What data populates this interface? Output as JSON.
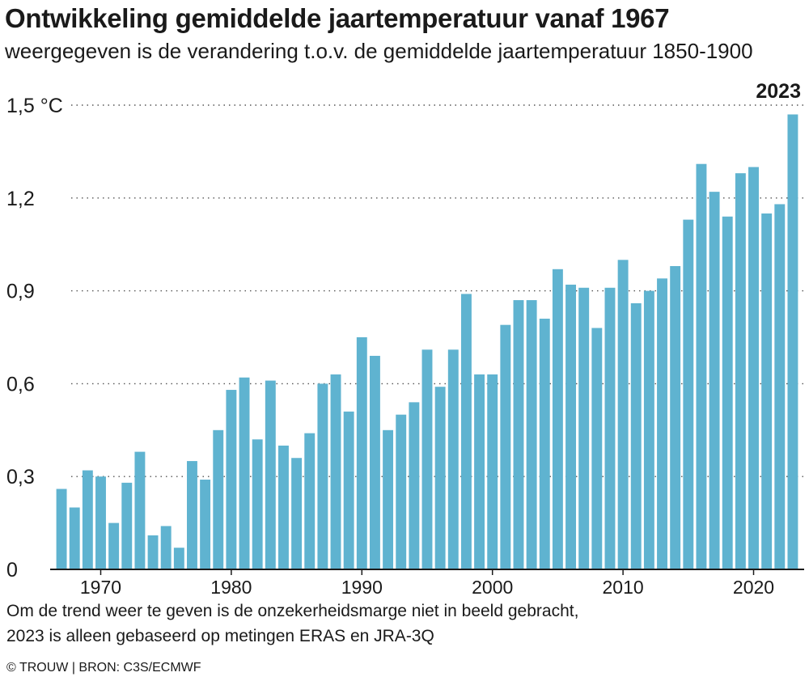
{
  "header": {
    "title": "Ontwikkeling gemiddelde jaartemperatuur vanaf 1967",
    "subtitle": "weergegeven is de verandering t.o.v. de gemiddelde jaartemperatuur 1850-1900"
  },
  "footer": {
    "note_line1": "Om de trend weer te geven is de onzekerheidsmarge niet in beeld gebracht,",
    "note_line2": "2023 is alleen gebaseerd op metingen ERAS en JRA-3Q",
    "credit": "© TROUW | BRON: C3S/ECMWF"
  },
  "chart_data": {
    "type": "bar",
    "title": "Ontwikkeling gemiddelde jaartemperatuur vanaf 1967",
    "subtitle": "weergegeven is de verandering t.o.v. de gemiddelde jaartemperatuur 1850-1900",
    "ylim": [
      0,
      1.5
    ],
    "y_ticks": [
      {
        "value": 0,
        "label": "0"
      },
      {
        "value": 0.3,
        "label": "0,3"
      },
      {
        "value": 0.6,
        "label": "0,6"
      },
      {
        "value": 0.9,
        "label": "0,9"
      },
      {
        "value": 1.2,
        "label": "1,2"
      },
      {
        "value": 1.5,
        "label": "1,5 °C"
      }
    ],
    "x_ticks": [
      1970,
      1980,
      1990,
      2000,
      2010,
      2020
    ],
    "grid": "horizontal dotted",
    "bar_color": "#5fb3d0",
    "highlight": {
      "year": 2023,
      "label": "2023"
    },
    "categories": [
      1967,
      1968,
      1969,
      1970,
      1971,
      1972,
      1973,
      1974,
      1975,
      1976,
      1977,
      1978,
      1979,
      1980,
      1981,
      1982,
      1983,
      1984,
      1985,
      1986,
      1987,
      1988,
      1989,
      1990,
      1991,
      1992,
      1993,
      1994,
      1995,
      1996,
      1997,
      1998,
      1999,
      2000,
      2001,
      2002,
      2003,
      2004,
      2005,
      2006,
      2007,
      2008,
      2009,
      2010,
      2011,
      2012,
      2013,
      2014,
      2015,
      2016,
      2017,
      2018,
      2019,
      2020,
      2021,
      2022,
      2023
    ],
    "values": [
      0.26,
      0.2,
      0.32,
      0.3,
      0.15,
      0.28,
      0.38,
      0.11,
      0.14,
      0.07,
      0.35,
      0.29,
      0.45,
      0.58,
      0.62,
      0.42,
      0.61,
      0.4,
      0.36,
      0.44,
      0.6,
      0.63,
      0.51,
      0.75,
      0.69,
      0.45,
      0.5,
      0.54,
      0.71,
      0.59,
      0.71,
      0.89,
      0.63,
      0.63,
      0.79,
      0.87,
      0.87,
      0.81,
      0.97,
      0.92,
      0.91,
      0.78,
      0.91,
      1.0,
      0.86,
      0.9,
      0.94,
      0.98,
      1.13,
      1.31,
      1.22,
      1.14,
      1.28,
      1.3,
      1.15,
      1.18,
      1.47
    ]
  }
}
